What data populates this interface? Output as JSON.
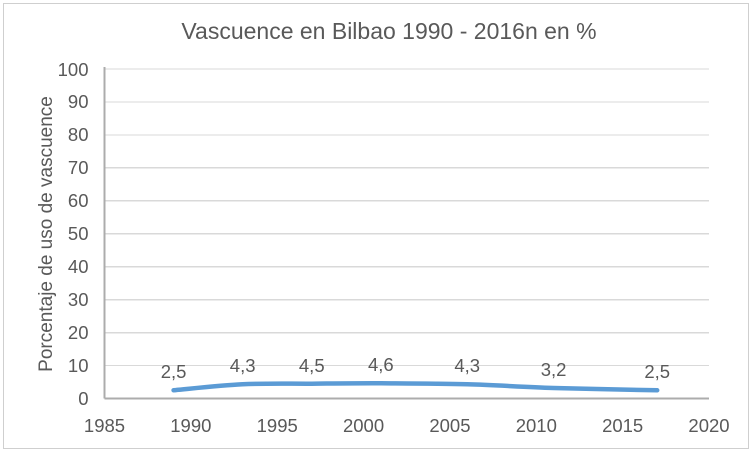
{
  "chart_data": {
    "type": "line",
    "title": "Vascuence en Bilbao 1990 - 2016n en %",
    "ylabel": "Porcentaje de uso de vascuence",
    "xlabel": "",
    "series": [
      {
        "name": "vascuence",
        "x": [
          1989,
          1993,
          1997,
          2001,
          2006,
          2011,
          2017
        ],
        "values": [
          2.5,
          4.3,
          4.5,
          4.6,
          4.3,
          3.2,
          2.5
        ],
        "point_labels": [
          "2,5",
          "4,3",
          "4,5",
          "4,6",
          "4,3",
          "3,2",
          "2,5"
        ]
      }
    ],
    "xlim": [
      1985,
      2020
    ],
    "ylim": [
      0,
      100
    ],
    "x_ticks": [
      1985,
      1990,
      1995,
      2000,
      2005,
      2010,
      2015,
      2020
    ],
    "y_ticks": [
      0,
      10,
      20,
      30,
      40,
      50,
      60,
      70,
      80,
      90,
      100
    ],
    "grid": "horizontal",
    "legend": "none",
    "smoothed": true,
    "colors": {
      "line": "#5B9BD5",
      "gridline": "#D9D9D9",
      "axis": "#ACACAC",
      "text": "#595959",
      "frame_border": "#CFCFCF",
      "background": "#FFFFFF"
    }
  }
}
